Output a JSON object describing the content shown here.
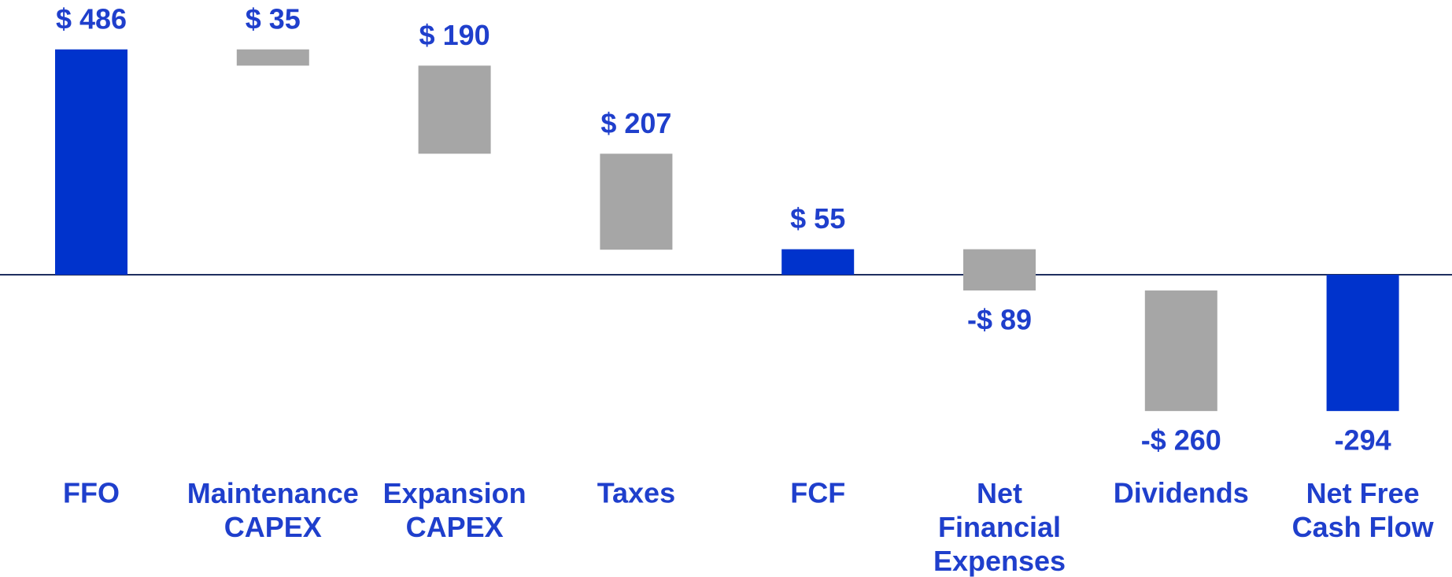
{
  "chart_data": {
    "type": "waterfall",
    "categories": [
      "FFO",
      "Maintenance\nCAPEX",
      "Expansion\nCAPEX",
      "Taxes",
      "FCF",
      "Net\nFinancial\nExpenses",
      "Dividends",
      "Net Free\nCash Flow"
    ],
    "values": [
      486,
      35,
      190,
      207,
      55,
      -89,
      -260,
      -294
    ],
    "value_labels": [
      "$ 486",
      "$ 35",
      "$ 190",
      "$ 207",
      "$ 55",
      "-$ 89",
      "-$ 260",
      "-294"
    ],
    "measures": [
      "total",
      "decrease",
      "decrease",
      "decrease",
      "total",
      "relative",
      "relative",
      "total"
    ],
    "total_color": "#0033cc",
    "step_color": "#a6a6a6",
    "label_color": "#1f3fcc"
  }
}
